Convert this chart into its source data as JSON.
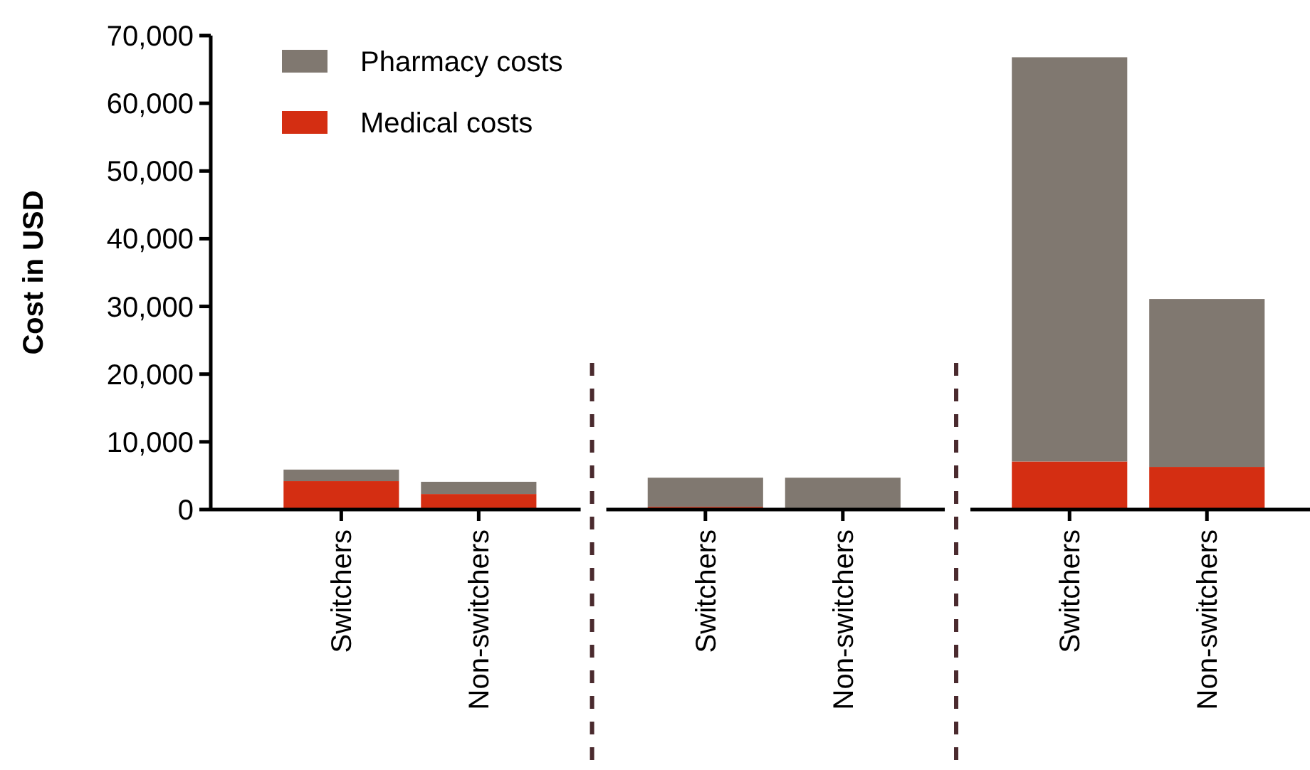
{
  "chart_data": {
    "type": "bar",
    "stacked": true,
    "ylabel": "Cost in USD",
    "categories": [
      "Switchers",
      "Non-switchers",
      "Switchers",
      "Non-switchers",
      "Switchers",
      "Non-switchers"
    ],
    "series": [
      {
        "name": "Medical costs",
        "color": "#d42e12",
        "values": [
          4200,
          2300,
          400,
          null,
          7100,
          6300
        ]
      },
      {
        "name": "Pharmacy costs",
        "color": "#807870",
        "values": [
          1700,
          1800,
          4300,
          4700,
          59700,
          24800
        ]
      }
    ],
    "ylim": [
      0,
      70000
    ],
    "yticks": [
      {
        "value": 0,
        "label": "0"
      },
      {
        "value": 10000,
        "label": "10,000"
      },
      {
        "value": 20000,
        "label": "20,000"
      },
      {
        "value": 30000,
        "label": "30,000"
      },
      {
        "value": 40000,
        "label": "40,000"
      },
      {
        "value": 50000,
        "label": "50,000"
      },
      {
        "value": 60000,
        "label": "60,000"
      },
      {
        "value": 70000,
        "label": "70,000"
      }
    ],
    "legend": "top left",
    "grid": false
  }
}
